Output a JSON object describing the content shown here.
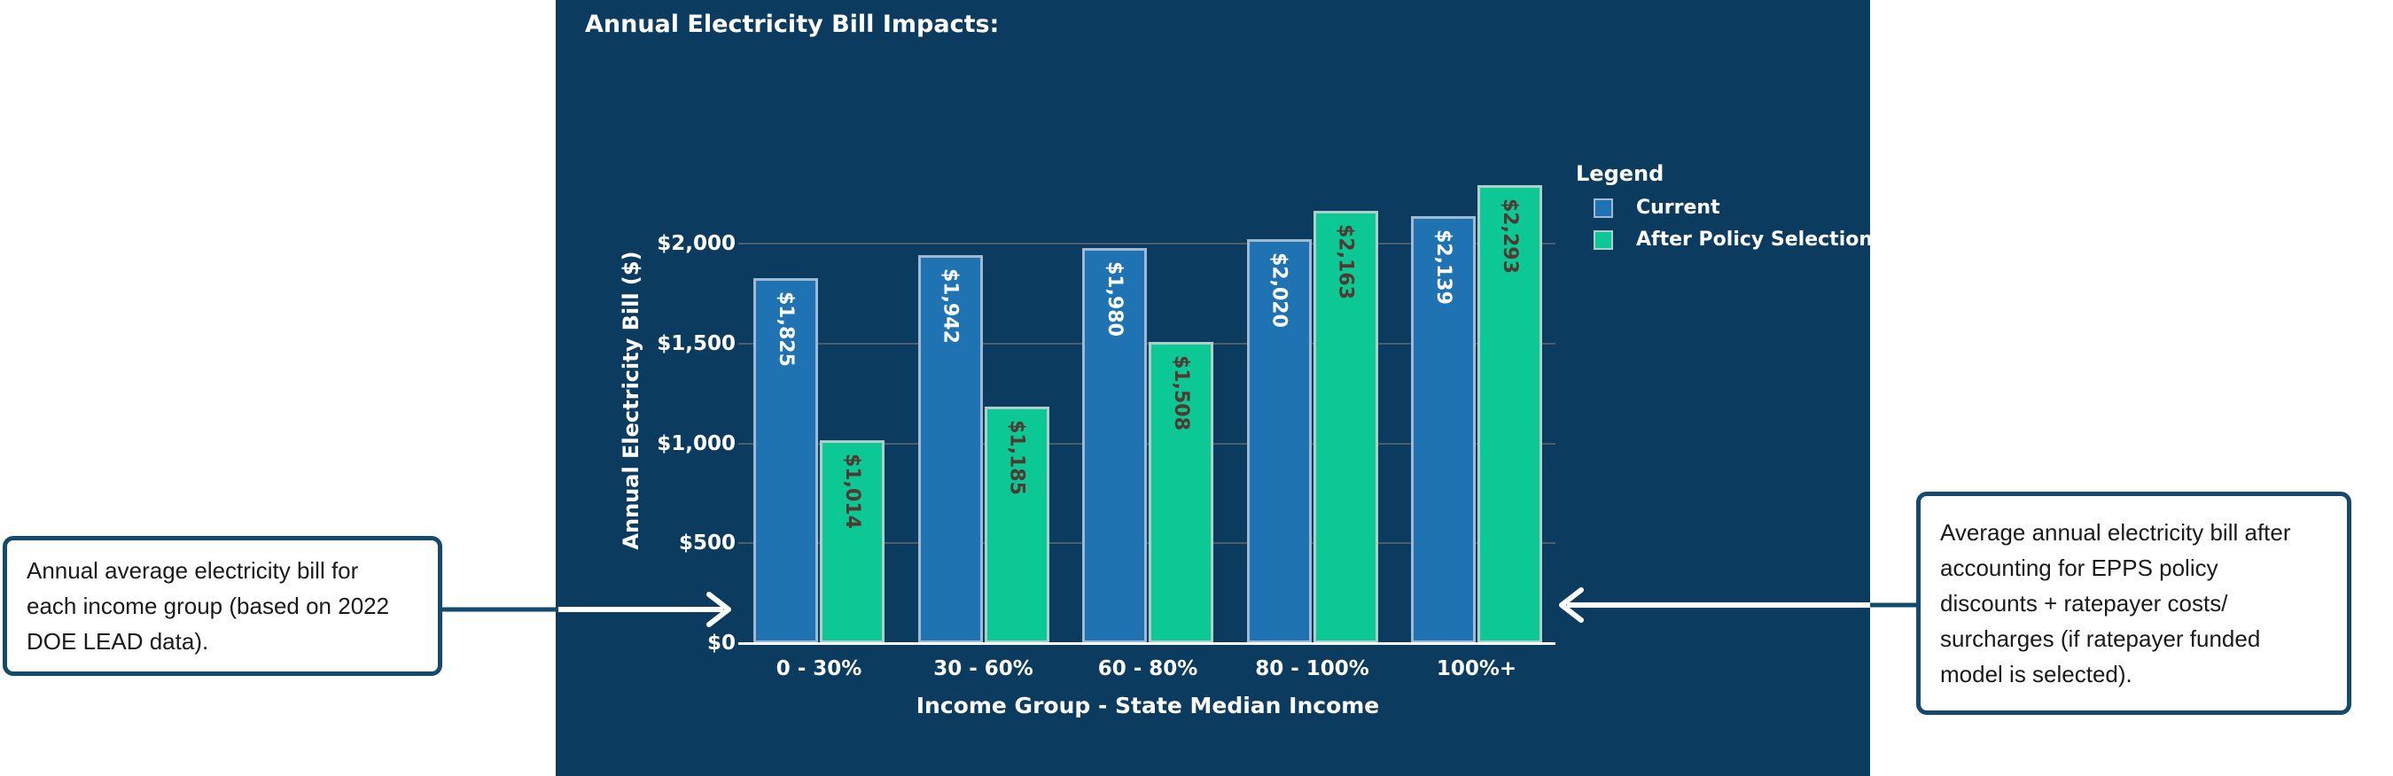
{
  "colors": {
    "panel_bg": "#0c3b60",
    "accent_navy": "#134a6e",
    "gridline": "#4d5d6c",
    "axis_line": "#ffffff",
    "text_white": "#ffffff",
    "callout_text": "#1a1a1a",
    "bar_blue": "#1f73b3",
    "bar_blue_border": "#a0b9d2",
    "bar_green": "#0cc894",
    "bar_green_border": "#aecfc9",
    "bar_label_on_blue": "#ffffff",
    "bar_label_on_green": "#523831"
  },
  "chart_data": {
    "type": "bar",
    "title": "Annual Electricity Bill Impacts:",
    "categories": [
      "0 - 30%",
      "30 - 60%",
      "60 - 80%",
      "80 - 100%",
      "100%+"
    ],
    "series": [
      {
        "name": "Current",
        "values": [
          1825,
          1942,
          1980,
          2020,
          2139
        ],
        "labels": [
          "$1,825",
          "$1,942",
          "$1,980",
          "$2,020",
          "$2,139"
        ],
        "color": "#1f73b3",
        "border": "#a0b9d2",
        "label_color": "#ffffff"
      },
      {
        "name": "After Policy Selection",
        "values": [
          1014,
          1185,
          1508,
          2163,
          2293
        ],
        "labels": [
          "$1,014",
          "$1,185",
          "$1,508",
          "$2,163",
          "$2,293"
        ],
        "color": "#0cc894",
        "border": "#aecfc9",
        "label_color": "#523831"
      }
    ],
    "xlabel": "Income Group - State Median Income",
    "ylabel": "Annual Electricity Bill ($)",
    "yticks": {
      "values": [
        0,
        500,
        1000,
        1500,
        2000
      ],
      "labels": [
        "$0",
        "$500",
        "$1,000",
        "$1,500",
        "$2,000"
      ]
    },
    "ylim": [
      0,
      2400
    ],
    "grid": true,
    "legend": {
      "title": "Legend",
      "position": "right"
    }
  },
  "callouts": {
    "left": {
      "text": "Annual average electricity bill for\neach income group (based on 2022\nDOE LEAD data)."
    },
    "right": {
      "text": "Average annual electricity bill after\naccounting for EPPS policy\ndiscounts + ratepayer costs/\nsurcharges (if ratepayer funded\nmodel is selected)."
    }
  }
}
